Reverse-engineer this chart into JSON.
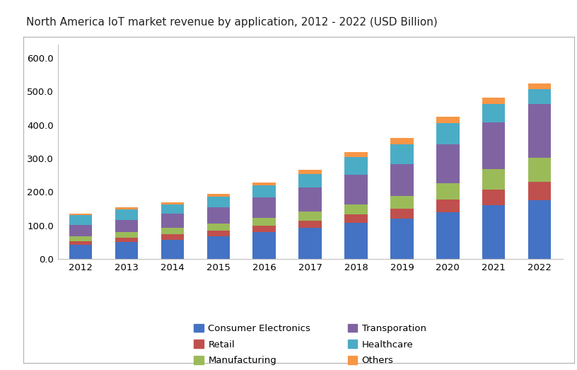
{
  "title": "North America IoT market revenue by application, 2012 - 2022 (USD Billion)",
  "years": [
    2012,
    2013,
    2014,
    2015,
    2016,
    2017,
    2018,
    2019,
    2020,
    2021,
    2022
  ],
  "categories": [
    "Consumer Electronics",
    "Retail",
    "Manufacturing",
    "Transporation",
    "Healthcare",
    "Others"
  ],
  "colors": [
    "#4472C4",
    "#C0504D",
    "#9BBB59",
    "#8064A2",
    "#4BACC6",
    "#F79646"
  ],
  "data": {
    "Consumer Electronics": [
      42,
      50,
      58,
      67,
      80,
      93,
      108,
      120,
      140,
      160,
      175
    ],
    "Retail": [
      12,
      14,
      16,
      18,
      20,
      22,
      25,
      30,
      38,
      48,
      55
    ],
    "Manufacturing": [
      14,
      16,
      18,
      20,
      22,
      27,
      30,
      38,
      48,
      60,
      72
    ],
    "Transporation": [
      34,
      37,
      43,
      50,
      62,
      72,
      88,
      95,
      115,
      140,
      160
    ],
    "Healthcare": [
      29,
      30,
      28,
      30,
      35,
      40,
      52,
      60,
      65,
      55,
      45
    ],
    "Others": [
      5,
      7,
      7,
      9,
      10,
      12,
      15,
      18,
      18,
      18,
      17
    ]
  },
  "ylim": [
    0,
    640
  ],
  "yticks": [
    0,
    100,
    200,
    300,
    400,
    500,
    600
  ],
  "ytick_labels": [
    "0.0",
    "100.0",
    "200.0",
    "300.0",
    "400.0",
    "500.0",
    "600.0"
  ],
  "background_color": "#ffffff",
  "plot_area_color": "#ffffff",
  "border_color": "#b0b0b0",
  "legend_order": [
    "Consumer Electronics",
    "Retail",
    "Manufacturing",
    "Transporation",
    "Healthcare",
    "Others"
  ],
  "legend_ncol": 2
}
